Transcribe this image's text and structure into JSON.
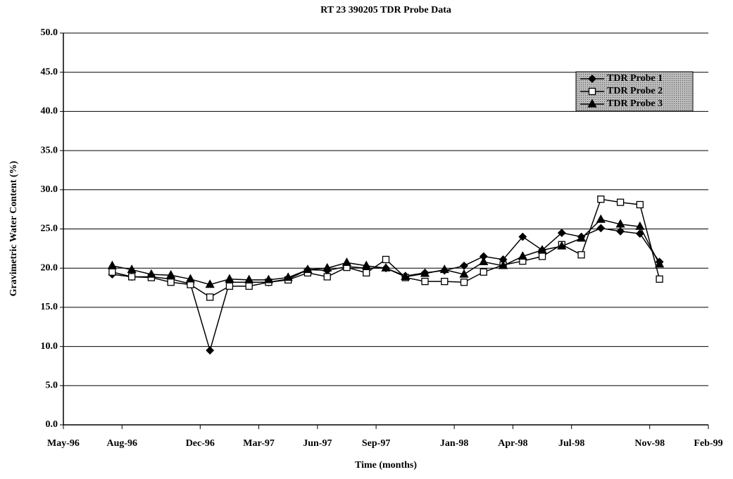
{
  "chart_data": {
    "type": "line",
    "title": "RT 23 390205  TDR Probe Data",
    "x_label": "Time (months)",
    "y_label": "Gravimetric Water Content (%)",
    "x": [
      "1996-07",
      "1996-08",
      "1996-09",
      "1996-10",
      "1996-11",
      "1996-12",
      "1997-01",
      "1997-02",
      "1997-03",
      "1997-04",
      "1997-05",
      "1997-06",
      "1997-07",
      "1997-08",
      "1997-09",
      "1997-10",
      "1997-11",
      "1997-12",
      "1998-01",
      "1998-02",
      "1998-03",
      "1998-04",
      "1998-05",
      "1998-06",
      "1998-07",
      "1998-08",
      "1998-09",
      "1998-10",
      "1998-11"
    ],
    "series": [
      {
        "name": "TDR Probe 1",
        "color": "#000000",
        "marker": "diamond",
        "values": [
          19.2,
          18.9,
          18.9,
          18.6,
          18.0,
          9.5,
          18.2,
          18.2,
          18.2,
          18.6,
          19.8,
          19.7,
          20.2,
          20.0,
          20.0,
          19.0,
          19.4,
          19.7,
          20.3,
          21.5,
          21.1,
          24.0,
          22.3,
          24.5,
          24.0,
          25.1,
          24.7,
          24.4,
          20.8
        ]
      },
      {
        "name": "TDR Probe 2",
        "color": "#000000",
        "marker": "square",
        "values": [
          19.5,
          18.9,
          18.8,
          18.2,
          17.9,
          16.3,
          17.7,
          17.7,
          18.2,
          18.5,
          19.4,
          18.9,
          20.1,
          19.4,
          21.1,
          18.8,
          18.3,
          18.3,
          18.2,
          19.5,
          20.4,
          20.9,
          21.5,
          23.0,
          21.7,
          28.8,
          28.4,
          28.1,
          18.6
        ]
      },
      {
        "name": "TDR Probe 3",
        "color": "#000000",
        "marker": "triangle",
        "values": [
          20.3,
          19.8,
          19.2,
          19.1,
          18.6,
          17.9,
          18.6,
          18.5,
          18.5,
          18.8,
          19.8,
          20.0,
          20.7,
          20.3,
          20.0,
          18.9,
          19.3,
          19.8,
          19.2,
          20.8,
          20.3,
          21.5,
          22.3,
          22.8,
          23.8,
          26.2,
          25.6,
          25.3,
          20.5
        ]
      }
    ],
    "xlim": [
      "1996-05",
      "1999-02"
    ],
    "xticks": [
      {
        "value": "1996-05",
        "label": "May-96"
      },
      {
        "value": "1996-08",
        "label": "Aug-96"
      },
      {
        "value": "1996-12",
        "label": "Dec-96"
      },
      {
        "value": "1997-03",
        "label": "Mar-97"
      },
      {
        "value": "1997-06",
        "label": "Jun-97"
      },
      {
        "value": "1997-09",
        "label": "Sep-97"
      },
      {
        "value": "1998-01",
        "label": "Jan-98"
      },
      {
        "value": "1998-04",
        "label": "Apr-98"
      },
      {
        "value": "1998-07",
        "label": "Jul-98"
      },
      {
        "value": "1998-11",
        "label": "Nov-98"
      },
      {
        "value": "1999-02",
        "label": "Feb-99"
      }
    ],
    "ylim": [
      0,
      50
    ],
    "yticks": [
      {
        "value": 0,
        "label": "0.0"
      },
      {
        "value": 5,
        "label": "5.0"
      },
      {
        "value": 10,
        "label": "10.0"
      },
      {
        "value": 15,
        "label": "15.0"
      },
      {
        "value": 20,
        "label": "20.0"
      },
      {
        "value": 25,
        "label": "25.0"
      },
      {
        "value": 30,
        "label": "30.0"
      },
      {
        "value": 35,
        "label": "35.0"
      },
      {
        "value": 40,
        "label": "40.0"
      },
      {
        "value": 45,
        "label": "45.0"
      },
      {
        "value": 50,
        "label": "50.0"
      }
    ],
    "grid": true,
    "legend": "top-right"
  }
}
